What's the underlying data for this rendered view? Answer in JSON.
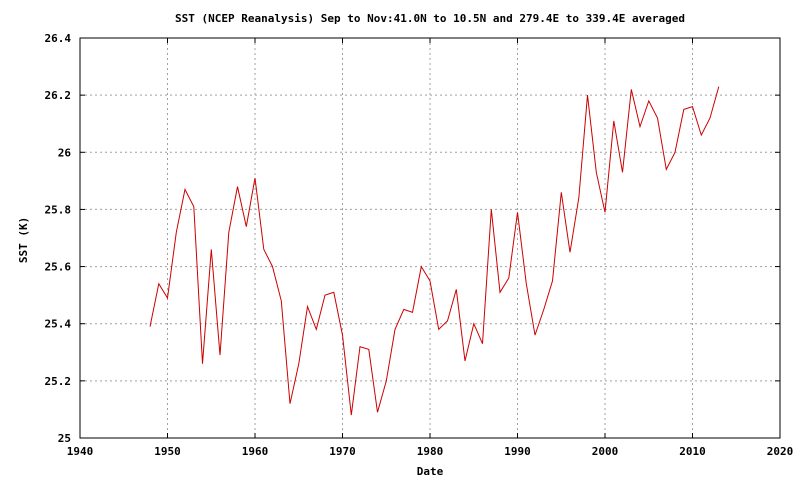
{
  "chart_data": {
    "type": "line",
    "title": "SST (NCEP Reanalysis) Sep to Nov:41.0N to 10.5N and 279.4E to 339.4E averaged",
    "xlabel": "Date",
    "ylabel": "SST (K)",
    "xlim": [
      1940,
      2020
    ],
    "ylim": [
      25,
      26.4
    ],
    "x_ticks": [
      1940,
      1950,
      1960,
      1970,
      1980,
      1990,
      2000,
      2010,
      2020
    ],
    "x_tick_labels": [
      "1940",
      "1950",
      "1960",
      "1970",
      "1980",
      "1990",
      "2000",
      "2010",
      "2020"
    ],
    "y_ticks": [
      25,
      25.2,
      25.4,
      25.6,
      25.8,
      26,
      26.2,
      26.4
    ],
    "y_tick_labels": [
      "25",
      "25.2",
      "25.4",
      "25.6",
      "25.8",
      "26",
      "26.2",
      "26.4"
    ],
    "grid": true,
    "series": [
      {
        "color": "#cc0000",
        "x": [
          1948,
          1949,
          1950,
          1951,
          1952,
          1953,
          1954,
          1955,
          1956,
          1957,
          1958,
          1959,
          1960,
          1961,
          1962,
          1963,
          1964,
          1965,
          1966,
          1967,
          1968,
          1969,
          1970,
          1971,
          1972,
          1973,
          1974,
          1975,
          1976,
          1977,
          1978,
          1979,
          1980,
          1981,
          1982,
          1983,
          1984,
          1985,
          1986,
          1987,
          1988,
          1989,
          1990,
          1991,
          1992,
          1993,
          1994,
          1995,
          1996,
          1997,
          1998,
          1999,
          2000,
          2001,
          2002,
          2003,
          2004,
          2005,
          2006,
          2007,
          2008,
          2009,
          2010,
          2011,
          2012,
          2013
        ],
        "values": [
          25.39,
          25.54,
          25.49,
          25.72,
          25.87,
          25.81,
          25.26,
          25.66,
          25.29,
          25.72,
          25.88,
          25.74,
          25.91,
          25.66,
          25.6,
          25.48,
          25.12,
          25.26,
          25.46,
          25.38,
          25.5,
          25.51,
          25.36,
          25.08,
          25.32,
          25.31,
          25.09,
          25.2,
          25.38,
          25.45,
          25.44,
          25.6,
          25.55,
          25.38,
          25.41,
          25.52,
          25.27,
          25.4,
          25.33,
          25.8,
          25.51,
          25.56,
          25.79,
          25.54,
          25.36,
          25.45,
          25.55,
          25.86,
          25.65,
          25.84,
          26.2,
          25.93,
          25.79,
          26.11,
          25.93,
          26.22,
          26.09,
          26.18,
          26.12,
          25.94,
          26.0,
          26.15,
          26.16,
          26.06,
          26.12,
          26.23
        ]
      }
    ]
  }
}
